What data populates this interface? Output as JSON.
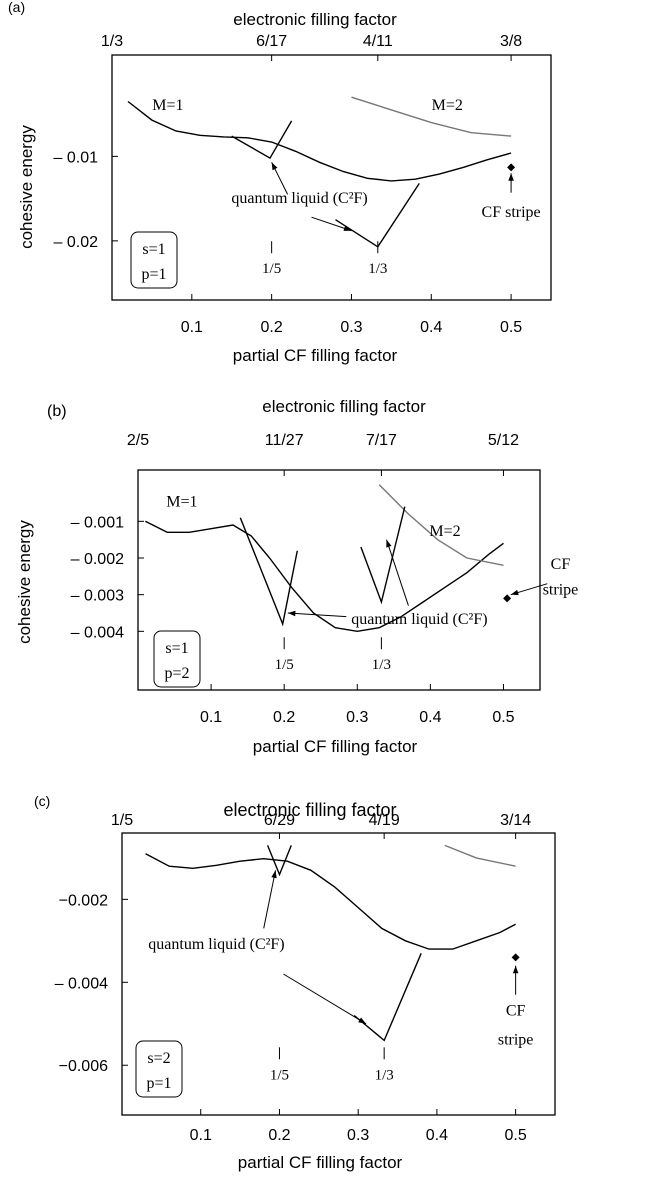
{
  "chart_data": [
    {
      "panel": "(a)",
      "type": "line",
      "xlabel": "partial CF filling factor",
      "ylabel": "cohesive energy",
      "top_axis_label": "electronic filling factor",
      "top_ticks": [
        {
          "x": 0.0,
          "label": "1/3"
        },
        {
          "x": 0.2,
          "label": "6/17"
        },
        {
          "x": 0.333,
          "label": "4/11"
        },
        {
          "x": 0.5,
          "label": "3/8"
        }
      ],
      "xlim": [
        0.0,
        0.55
      ],
      "ylim": [
        -0.027,
        0.002
      ],
      "xticks": [
        0.1,
        0.2,
        0.3,
        0.4,
        0.5
      ],
      "xtick_labels": [
        "0.1",
        "0.2",
        "0.3",
        "0.4",
        "0.5"
      ],
      "yticks": [
        -0.01,
        -0.02
      ],
      "ytick_labels": [
        "– 0.01",
        "– 0.02"
      ],
      "grid": false,
      "series": [
        {
          "name": "M=1",
          "color": "#000000",
          "x": [
            0.02,
            0.05,
            0.08,
            0.11,
            0.14,
            0.17,
            0.2,
            0.23,
            0.26,
            0.29,
            0.32,
            0.35,
            0.38,
            0.41,
            0.44,
            0.47,
            0.5
          ],
          "y": [
            -0.0035,
            -0.0057,
            -0.007,
            -0.0075,
            -0.0077,
            -0.0078,
            -0.0083,
            -0.0094,
            -0.0107,
            -0.0118,
            -0.0126,
            -0.0129,
            -0.0127,
            -0.0121,
            -0.0113,
            -0.0104,
            -0.0096
          ]
        },
        {
          "name": "M=2",
          "color": "#777777",
          "x": [
            0.3,
            0.35,
            0.4,
            0.45,
            0.5
          ],
          "y": [
            -0.003,
            -0.0045,
            -0.006,
            -0.0072,
            -0.0076
          ]
        },
        {
          "name": "",
          "color": "#000000",
          "x": [
            0.15,
            0.198,
            0.225
          ],
          "y": [
            -0.0076,
            -0.0102,
            -0.0058
          ]
        },
        {
          "name": "",
          "color": "#000000",
          "x": [
            0.28,
            0.333,
            0.385
          ],
          "y": [
            -0.0175,
            -0.0207,
            -0.0132
          ]
        }
      ],
      "points": [
        {
          "x": 0.5,
          "y": -0.0113,
          "color": "#000000"
        }
      ],
      "markers": [
        {
          "x": 0.2,
          "label": "1/5"
        },
        {
          "x": 0.333,
          "label": "1/3"
        }
      ],
      "legend_box": [
        "s=1",
        "p=1"
      ],
      "annotations": [
        {
          "text": "M=1",
          "x": 0.07,
          "y": -0.0045
        },
        {
          "text": "M=2",
          "x": 0.42,
          "y": -0.0045
        },
        {
          "text": "quantum liquid (C²F)",
          "x": 0.235,
          "y": -0.0155
        },
        {
          "text": "CF stripe",
          "x": 0.5,
          "y": -0.0172
        }
      ],
      "arrows": [
        {
          "from": [
            0.22,
            -0.0145
          ],
          "to": [
            0.2,
            -0.0107
          ]
        },
        {
          "from": [
            0.25,
            -0.0172
          ],
          "to": [
            0.3,
            -0.0188
          ]
        },
        {
          "from": [
            0.5,
            -0.0143
          ],
          "to": [
            0.5,
            -0.012
          ]
        }
      ]
    },
    {
      "panel": "(b)",
      "type": "line",
      "xlabel": "partial CF filling factor",
      "ylabel": "cohesive energy",
      "top_axis_label": "electronic filling factor",
      "top_ticks": [
        {
          "x": 0.0,
          "label": "2/5"
        },
        {
          "x": 0.2,
          "label": "11/27"
        },
        {
          "x": 0.333,
          "label": "7/17"
        },
        {
          "x": 0.5,
          "label": "5/12"
        }
      ],
      "xlim": [
        0.0,
        0.55
      ],
      "ylim": [
        -0.0056,
        0.0004
      ],
      "xticks": [
        0.1,
        0.2,
        0.3,
        0.4,
        0.5
      ],
      "xtick_labels": [
        "0.1",
        "0.2",
        "0.3",
        "0.4",
        "0.5"
      ],
      "yticks": [
        -0.001,
        -0.002,
        -0.003,
        -0.004
      ],
      "ytick_labels": [
        "– 0.001",
        "– 0.002",
        "– 0.003",
        "– 0.004"
      ],
      "grid": false,
      "series": [
        {
          "name": "M=1",
          "color": "#000000",
          "x": [
            0.01,
            0.04,
            0.07,
            0.1,
            0.13,
            0.155,
            0.18,
            0.21,
            0.24,
            0.27,
            0.3,
            0.33,
            0.36,
            0.39,
            0.42,
            0.45,
            0.48,
            0.5
          ],
          "y": [
            -0.001,
            -0.0013,
            -0.0013,
            -0.0012,
            -0.0011,
            -0.0014,
            -0.002,
            -0.0028,
            -0.0035,
            -0.0039,
            -0.004,
            -0.0039,
            -0.0036,
            -0.0032,
            -0.0028,
            -0.0024,
            -0.0019,
            -0.0016
          ]
        },
        {
          "name": "M=2",
          "color": "#777777",
          "x": [
            0.33,
            0.37,
            0.41,
            0.45,
            0.5
          ],
          "y": [
            0.0,
            -0.0008,
            -0.0015,
            -0.002,
            -0.0022
          ]
        },
        {
          "name": "",
          "color": "#000000",
          "x": [
            0.14,
            0.198,
            0.218
          ],
          "y": [
            -0.0009,
            -0.0038,
            -0.0018
          ]
        },
        {
          "name": "",
          "color": "#000000",
          "x": [
            0.305,
            0.333,
            0.365
          ],
          "y": [
            -0.0017,
            -0.0032,
            -0.0006
          ]
        }
      ],
      "points": [
        {
          "x": 0.505,
          "y": -0.0031,
          "color": "#000000"
        }
      ],
      "markers": [
        {
          "x": 0.2,
          "label": "1/5"
        },
        {
          "x": 0.333,
          "label": "1/3"
        }
      ],
      "legend_box": [
        "s=1",
        "p=2"
      ],
      "annotations": [
        {
          "text": "M=1",
          "x": 0.06,
          "y": -0.0006
        },
        {
          "text": "M=2",
          "x": 0.42,
          "y": -0.0014
        },
        {
          "text": "quantum liquid (C²F)",
          "x": 0.385,
          "y": -0.0038
        },
        {
          "text": "CF",
          "x": 0.578,
          "y": -0.0023
        },
        {
          "text": "stripe",
          "x": 0.578,
          "y": -0.003
        }
      ],
      "arrows": [
        {
          "from": [
            0.285,
            -0.0036
          ],
          "to": [
            0.205,
            -0.0035
          ]
        },
        {
          "from": [
            0.37,
            -0.0033
          ],
          "to": [
            0.34,
            -0.0015
          ]
        },
        {
          "from": [
            0.56,
            -0.0027
          ],
          "to": [
            0.51,
            -0.003
          ]
        }
      ]
    },
    {
      "panel": "(c)",
      "type": "line",
      "xlabel": "partial CF filling factor",
      "ylabel": "",
      "top_axis_label": "electronic filling factor",
      "top_ticks": [
        {
          "x": 0.0,
          "label": "1/5"
        },
        {
          "x": 0.2,
          "label": "6/29"
        },
        {
          "x": 0.333,
          "label": "4/19"
        },
        {
          "x": 0.5,
          "label": "3/14"
        }
      ],
      "xlim": [
        0.0,
        0.55
      ],
      "ylim": [
        -0.0072,
        -0.0004
      ],
      "xticks": [
        0.1,
        0.2,
        0.3,
        0.4,
        0.5
      ],
      "xtick_labels": [
        "0.1",
        "0.2",
        "0.3",
        "0.4",
        "0.5"
      ],
      "yticks": [
        -0.002,
        -0.004,
        -0.006
      ],
      "ytick_labels": [
        "−0.002",
        "– 0.004",
        "−0.006"
      ],
      "grid": false,
      "series": [
        {
          "name": "",
          "color": "#000000",
          "x": [
            0.03,
            0.06,
            0.09,
            0.12,
            0.15,
            0.18,
            0.21,
            0.24,
            0.27,
            0.3,
            0.33,
            0.36,
            0.39,
            0.42,
            0.45,
            0.48,
            0.5
          ],
          "y": [
            -0.0009,
            -0.0012,
            -0.00125,
            -0.00118,
            -0.00108,
            -0.00102,
            -0.00108,
            -0.0013,
            -0.0017,
            -0.0022,
            -0.0027,
            -0.003,
            -0.0032,
            -0.0032,
            -0.003,
            -0.0028,
            -0.0026
          ]
        },
        {
          "name": "",
          "color": "#777777",
          "x": [
            0.41,
            0.45,
            0.5
          ],
          "y": [
            -0.0007,
            -0.001,
            -0.0012
          ]
        },
        {
          "name": "",
          "color": "#000000",
          "x": [
            0.185,
            0.2,
            0.215
          ],
          "y": [
            -0.0007,
            -0.0014,
            -0.0007
          ]
        },
        {
          "name": "",
          "color": "#000000",
          "x": [
            0.295,
            0.333,
            0.38
          ],
          "y": [
            -0.0048,
            -0.0054,
            -0.0033
          ]
        }
      ],
      "points": [
        {
          "x": 0.5,
          "y": -0.0034,
          "color": "#000000"
        }
      ],
      "markers": [
        {
          "x": 0.2,
          "label": "1/5"
        },
        {
          "x": 0.333,
          "label": "1/3"
        }
      ],
      "legend_box": [
        "s=2",
        "p=1"
      ],
      "annotations": [
        {
          "text": "quantum liquid (C²F)",
          "x": 0.12,
          "y": -0.0032
        },
        {
          "text": "CF",
          "x": 0.5,
          "y": -0.0048
        },
        {
          "text": "stripe",
          "x": 0.5,
          "y": -0.0055
        }
      ],
      "arrows": [
        {
          "from": [
            0.18,
            -0.0027
          ],
          "to": [
            0.195,
            -0.0013
          ]
        },
        {
          "from": [
            0.205,
            -0.0038
          ],
          "to": [
            0.31,
            -0.005
          ]
        },
        {
          "from": [
            0.5,
            -0.0043
          ],
          "to": [
            0.5,
            -0.0036
          ]
        }
      ]
    }
  ]
}
